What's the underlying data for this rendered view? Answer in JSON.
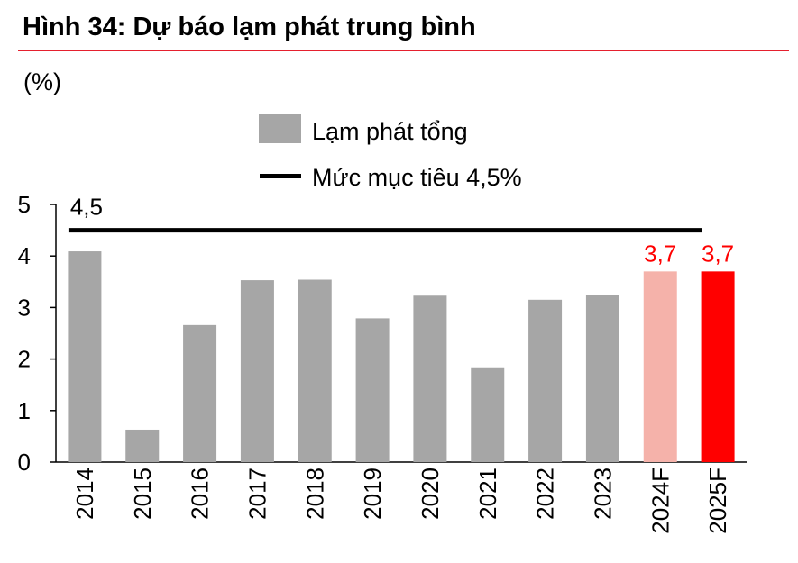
{
  "figure": {
    "title": "Hình 34: Dự báo lạm phát trung bình",
    "unit_label": "(%)"
  },
  "colors": {
    "actual": "#a6a6a6",
    "forecast_light": "#f5b2aa",
    "forecast_strong": "#ff0000",
    "target_line": "#000000",
    "title_rule": "#e5202e",
    "forecast_label": "#ff0000"
  },
  "chart_data": {
    "type": "bar",
    "categories": [
      "2014",
      "2015",
      "2016",
      "2017",
      "2018",
      "2019",
      "2020",
      "2021",
      "2022",
      "2023",
      "2024F",
      "2025F"
    ],
    "series": [
      {
        "name": "Lạm phát tổng",
        "values": [
          4.09,
          0.63,
          2.66,
          3.53,
          3.54,
          2.79,
          3.23,
          1.84,
          3.15,
          3.25,
          3.7,
          3.7
        ]
      }
    ],
    "bar_styles": [
      "actual",
      "actual",
      "actual",
      "actual",
      "actual",
      "actual",
      "actual",
      "actual",
      "actual",
      "actual",
      "forecast_light",
      "forecast_strong"
    ],
    "data_labels": [
      "",
      "",
      "",
      "",
      "",
      "",
      "",
      "",
      "",
      "",
      "3,7",
      "3,7"
    ],
    "target_line": {
      "name": "Mức mục tiêu 4,5%",
      "value": 4.5,
      "label": "4,5"
    },
    "yticks": [
      "0",
      "1",
      "2",
      "3",
      "4",
      "5"
    ],
    "ylim": [
      0,
      5
    ],
    "grid": false,
    "legend_position": "top-center"
  }
}
